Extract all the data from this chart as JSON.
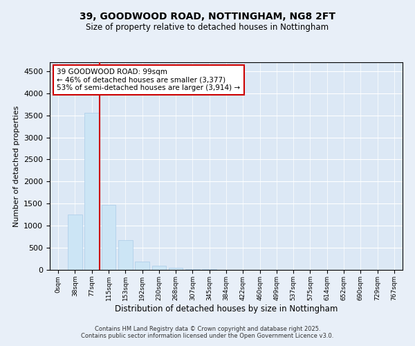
{
  "title1": "39, GOODWOOD ROAD, NOTTINGHAM, NG8 2FT",
  "title2": "Size of property relative to detached houses in Nottingham",
  "xlabel": "Distribution of detached houses by size in Nottingham",
  "ylabel": "Number of detached properties",
  "categories": [
    "0sqm",
    "38sqm",
    "77sqm",
    "115sqm",
    "153sqm",
    "192sqm",
    "230sqm",
    "268sqm",
    "307sqm",
    "345sqm",
    "384sqm",
    "422sqm",
    "460sqm",
    "499sqm",
    "537sqm",
    "575sqm",
    "614sqm",
    "652sqm",
    "690sqm",
    "729sqm",
    "767sqm"
  ],
  "values": [
    0,
    1250,
    3550,
    1480,
    680,
    195,
    100,
    45,
    18,
    10,
    6,
    4,
    3,
    2,
    1,
    1,
    1,
    0,
    0,
    0,
    0
  ],
  "bar_color": "#cce5f5",
  "bar_edge_color": "#aacce8",
  "vline_color": "#cc0000",
  "annotation_text_line1": "39 GOODWOOD ROAD: 99sqm",
  "annotation_text_line2": "← 46% of detached houses are smaller (3,377)",
  "annotation_text_line3": "53% of semi-detached houses are larger (3,914) →",
  "annotation_box_facecolor": "#ffffff",
  "annotation_box_edgecolor": "#cc0000",
  "footer_line1": "Contains HM Land Registry data © Crown copyright and database right 2025.",
  "footer_line2": "Contains public sector information licensed under the Open Government Licence v3.0.",
  "background_color": "#e8eff8",
  "plot_background_color": "#dce8f5",
  "ylim": [
    0,
    4700
  ],
  "yticks": [
    0,
    500,
    1000,
    1500,
    2000,
    2500,
    3000,
    3500,
    4000,
    4500
  ]
}
